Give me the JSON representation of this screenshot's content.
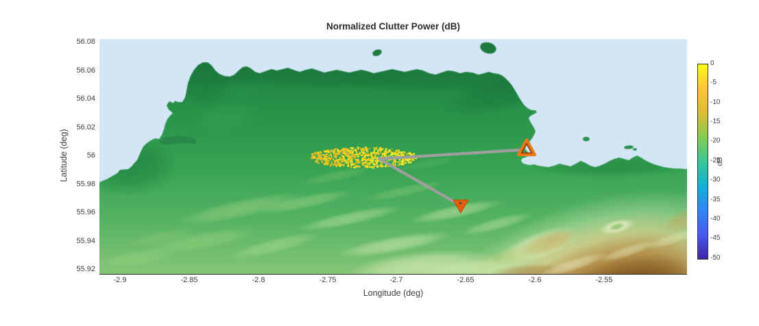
{
  "title": "Normalized Clutter Power (dB)",
  "axes": {
    "xlabel": "Longitude (deg)",
    "ylabel": "Latitude (deg)",
    "x_ticks": [
      "-2.9",
      "-2.85",
      "-2.8",
      "-2.75",
      "-2.7",
      "-2.65",
      "-2.6",
      "-2.55"
    ],
    "y_ticks": [
      "56.08",
      "56.06",
      "56.04",
      "56.02",
      "56",
      "55.98",
      "55.96",
      "55.94",
      "55.92"
    ]
  },
  "colorbar": {
    "label": "dB",
    "ticks": [
      "0",
      "-5",
      "-10",
      "-15",
      "-20",
      "-25",
      "-30",
      "-35",
      "-40",
      "-45",
      "-50"
    ]
  },
  "colors": {
    "sea": "#d3e6f6",
    "land_dark_green": "#156f37",
    "land_green": "#2f9d4e",
    "land_light_green": "#84c676",
    "highland_cream": "#e9f2c3",
    "highland_tan": "#c8a757",
    "highland_brown": "#9a6a2a",
    "highland_dark_brown": "#6e4414",
    "clutter_orange": "#dd961e",
    "clutter_yellow": "#fdf428",
    "marker_orange": "#e8791c",
    "marker_dark_edge": "#a63c02",
    "marker_fill": "#e85c0a",
    "baseline_gray": "#9e9e9e",
    "text": "#3f3f3f"
  },
  "chart_data": {
    "type": "heatmap",
    "title": "Normalized Clutter Power (dB)",
    "xlabel": "Longitude (deg)",
    "ylabel": "Latitude (deg)",
    "xlim": [
      -2.915,
      -2.49
    ],
    "ylim": [
      55.917,
      56.083
    ],
    "grid": false,
    "colorbar": {
      "label": "dB",
      "range_db": [
        -50,
        0
      ],
      "tick_step_db": 5,
      "colormap": "parula",
      "position": "right"
    },
    "basemap": "coastal terrain: sea to the north and in a north-east bay, green lowland, brown highlands in the south-east corner, two small islands offshore",
    "clutter_patch": {
      "shape": "ellipse of scattered clutter-power sample dots",
      "center_lon": -2.724,
      "center_lat": 56.0,
      "semi_axis_lon_deg": 0.039,
      "semi_axis_lat_deg": 0.0075,
      "power_db_range": [
        -10,
        0
      ]
    },
    "markers": [
      {
        "shape": "triangle-up-hollow",
        "lon": -2.606,
        "lat": 56.006
      },
      {
        "shape": "triangle-down-filled",
        "lon": -2.653,
        "lat": 55.965
      }
    ],
    "baselines": {
      "vertex_lon": -2.712,
      "vertex_lat": 55.999,
      "description": "two gray lines from the clutter-patch edge to each triangle marker"
    }
  }
}
